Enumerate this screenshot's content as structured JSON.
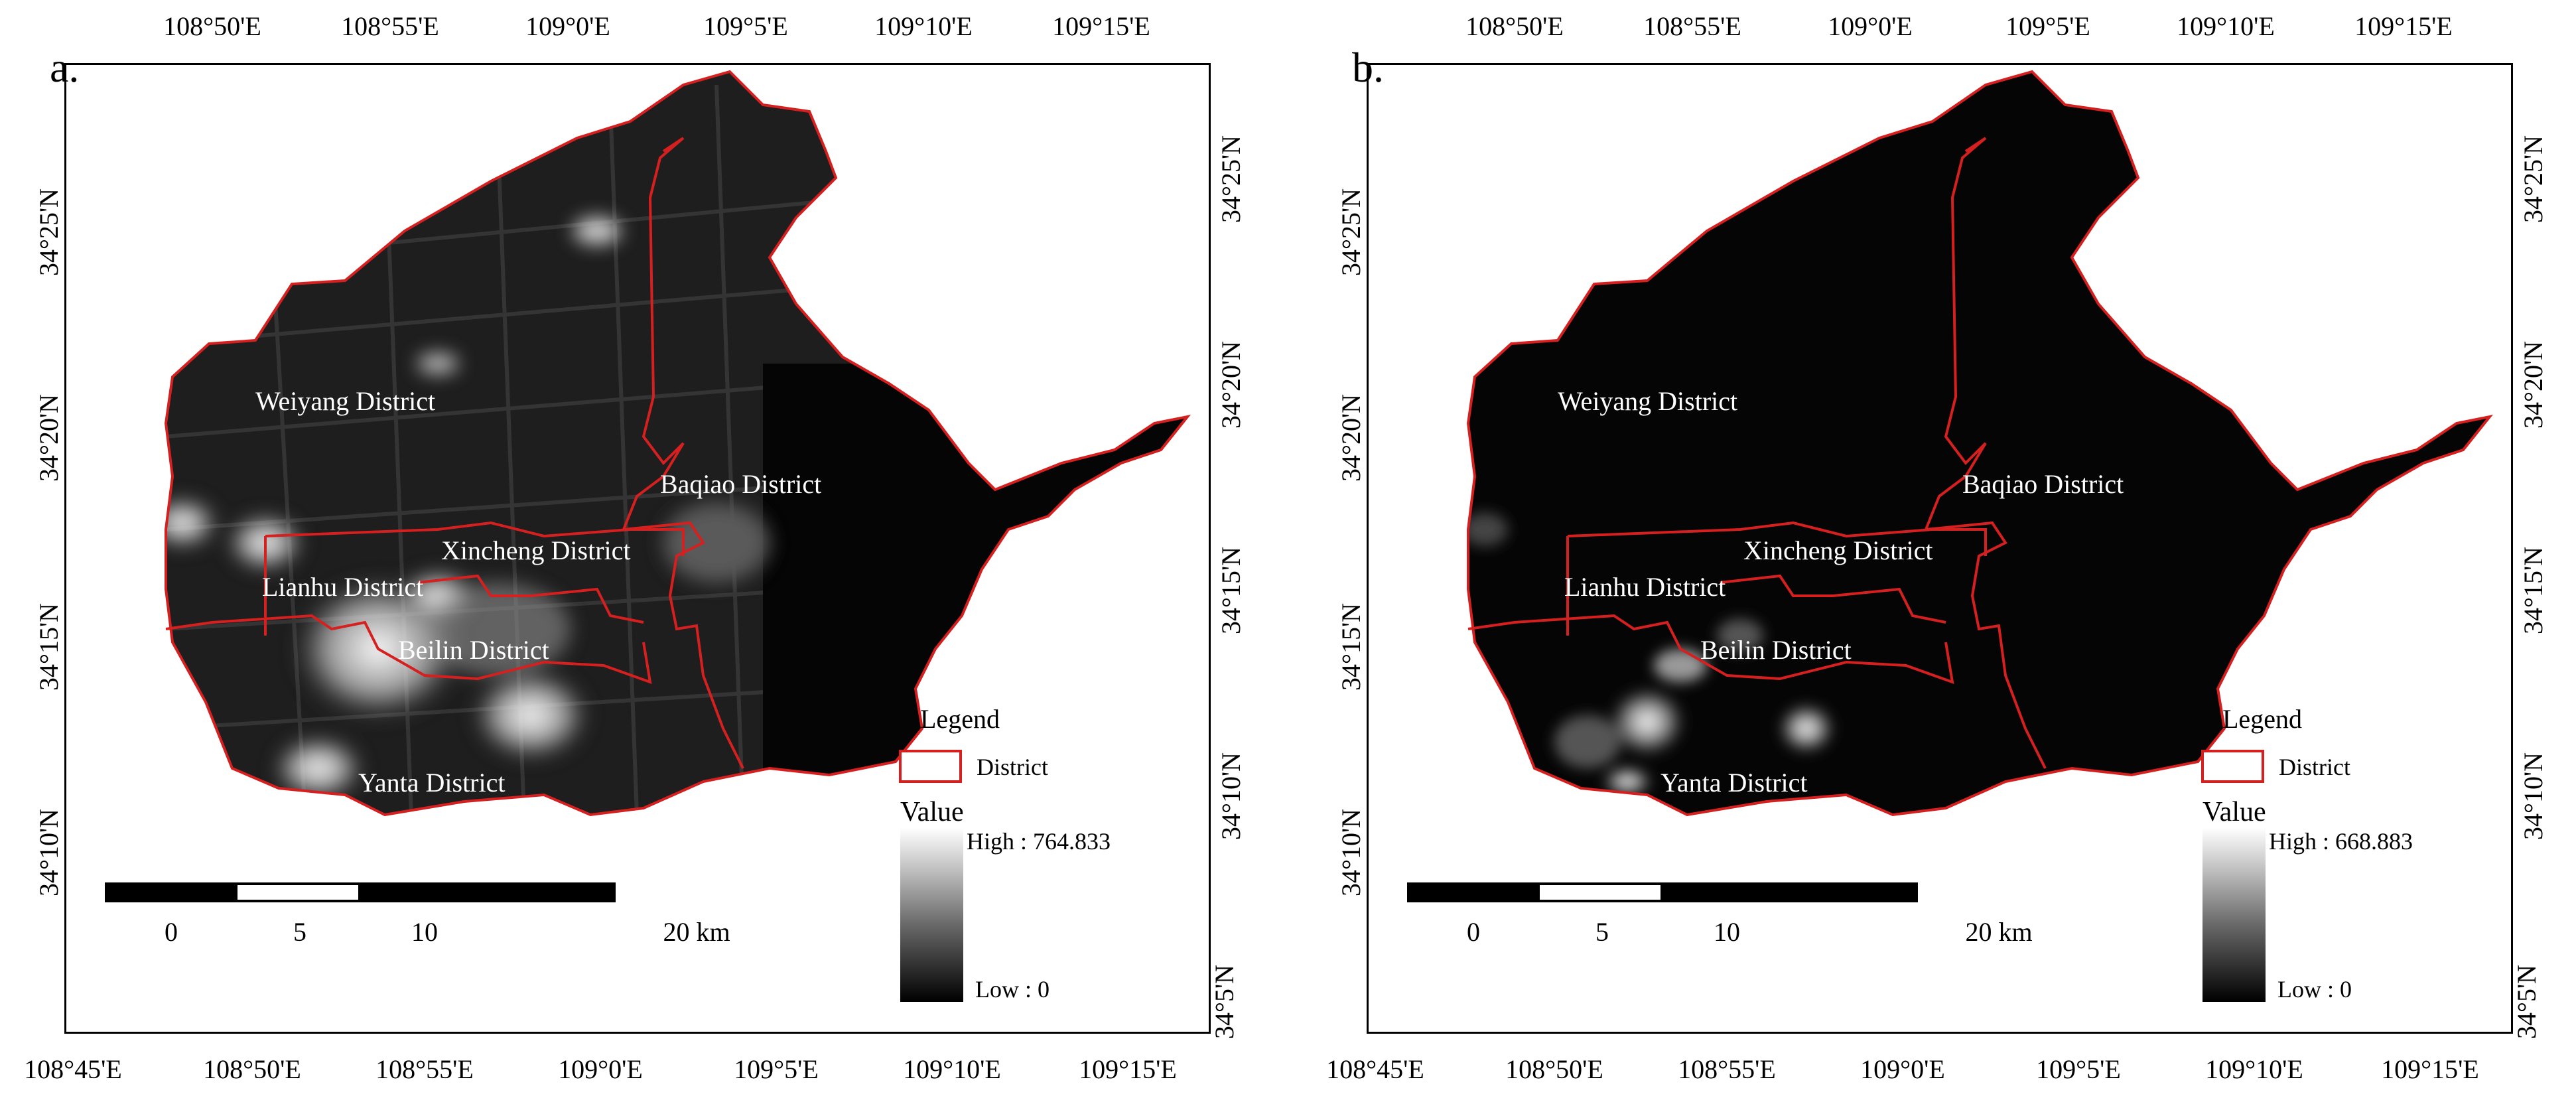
{
  "panels": [
    {
      "letter": "a.",
      "top_ticks": [
        "108°50'E",
        "108°55'E",
        "109°0'E",
        "109°5'E",
        "109°10'E",
        "109°15'E"
      ],
      "bottom_ticks": [
        "108°45'E",
        "108°50'E",
        "108°55'E",
        "109°0'E",
        "109°5'E",
        "109°10'E",
        "109°15'E"
      ],
      "left_ticks": [
        "34°25'N",
        "34°20'N",
        "34°15'N",
        "34°10'N"
      ],
      "right_ticks": [
        "34°25'N",
        "34°20'N",
        "34°15'N",
        "34°10'N",
        "34°5'N"
      ],
      "districts": [
        "Weiyang District",
        "Baqiao District",
        "Xincheng District",
        "Lianhu District",
        "Beilin District",
        "Yanta District"
      ],
      "legend": {
        "title": "Legend",
        "item": "District",
        "value_label": "Value",
        "high": "High : 764.833",
        "low": "Low : 0"
      },
      "scalebar": [
        "0",
        "5",
        "10",
        "20 km"
      ]
    },
    {
      "letter": "b.",
      "top_ticks": [
        "108°50'E",
        "108°55'E",
        "109°0'E",
        "109°5'E",
        "109°10'E",
        "109°15'E"
      ],
      "bottom_ticks": [
        "108°45'E",
        "108°50'E",
        "108°55'E",
        "109°0'E",
        "109°5'E",
        "109°10'E",
        "109°15'E"
      ],
      "left_ticks": [
        "34°25'N",
        "34°20'N",
        "34°15'N",
        "34°10'N"
      ],
      "right_ticks": [
        "34°25'N",
        "34°20'N",
        "34°15'N",
        "34°10'N",
        "34°5'N"
      ],
      "districts": [
        "Weiyang District",
        "Baqiao District",
        "Xincheng District",
        "Lianhu District",
        "Beilin District",
        "Yanta District"
      ],
      "legend": {
        "title": "Legend",
        "item": "District",
        "value_label": "Value",
        "high": "High : 668.883",
        "low": "Low : 0"
      },
      "scalebar": [
        "0",
        "5",
        "10",
        "20 km"
      ]
    }
  ],
  "colors": {
    "boundary": "#d62020",
    "background_map": "#000000"
  }
}
